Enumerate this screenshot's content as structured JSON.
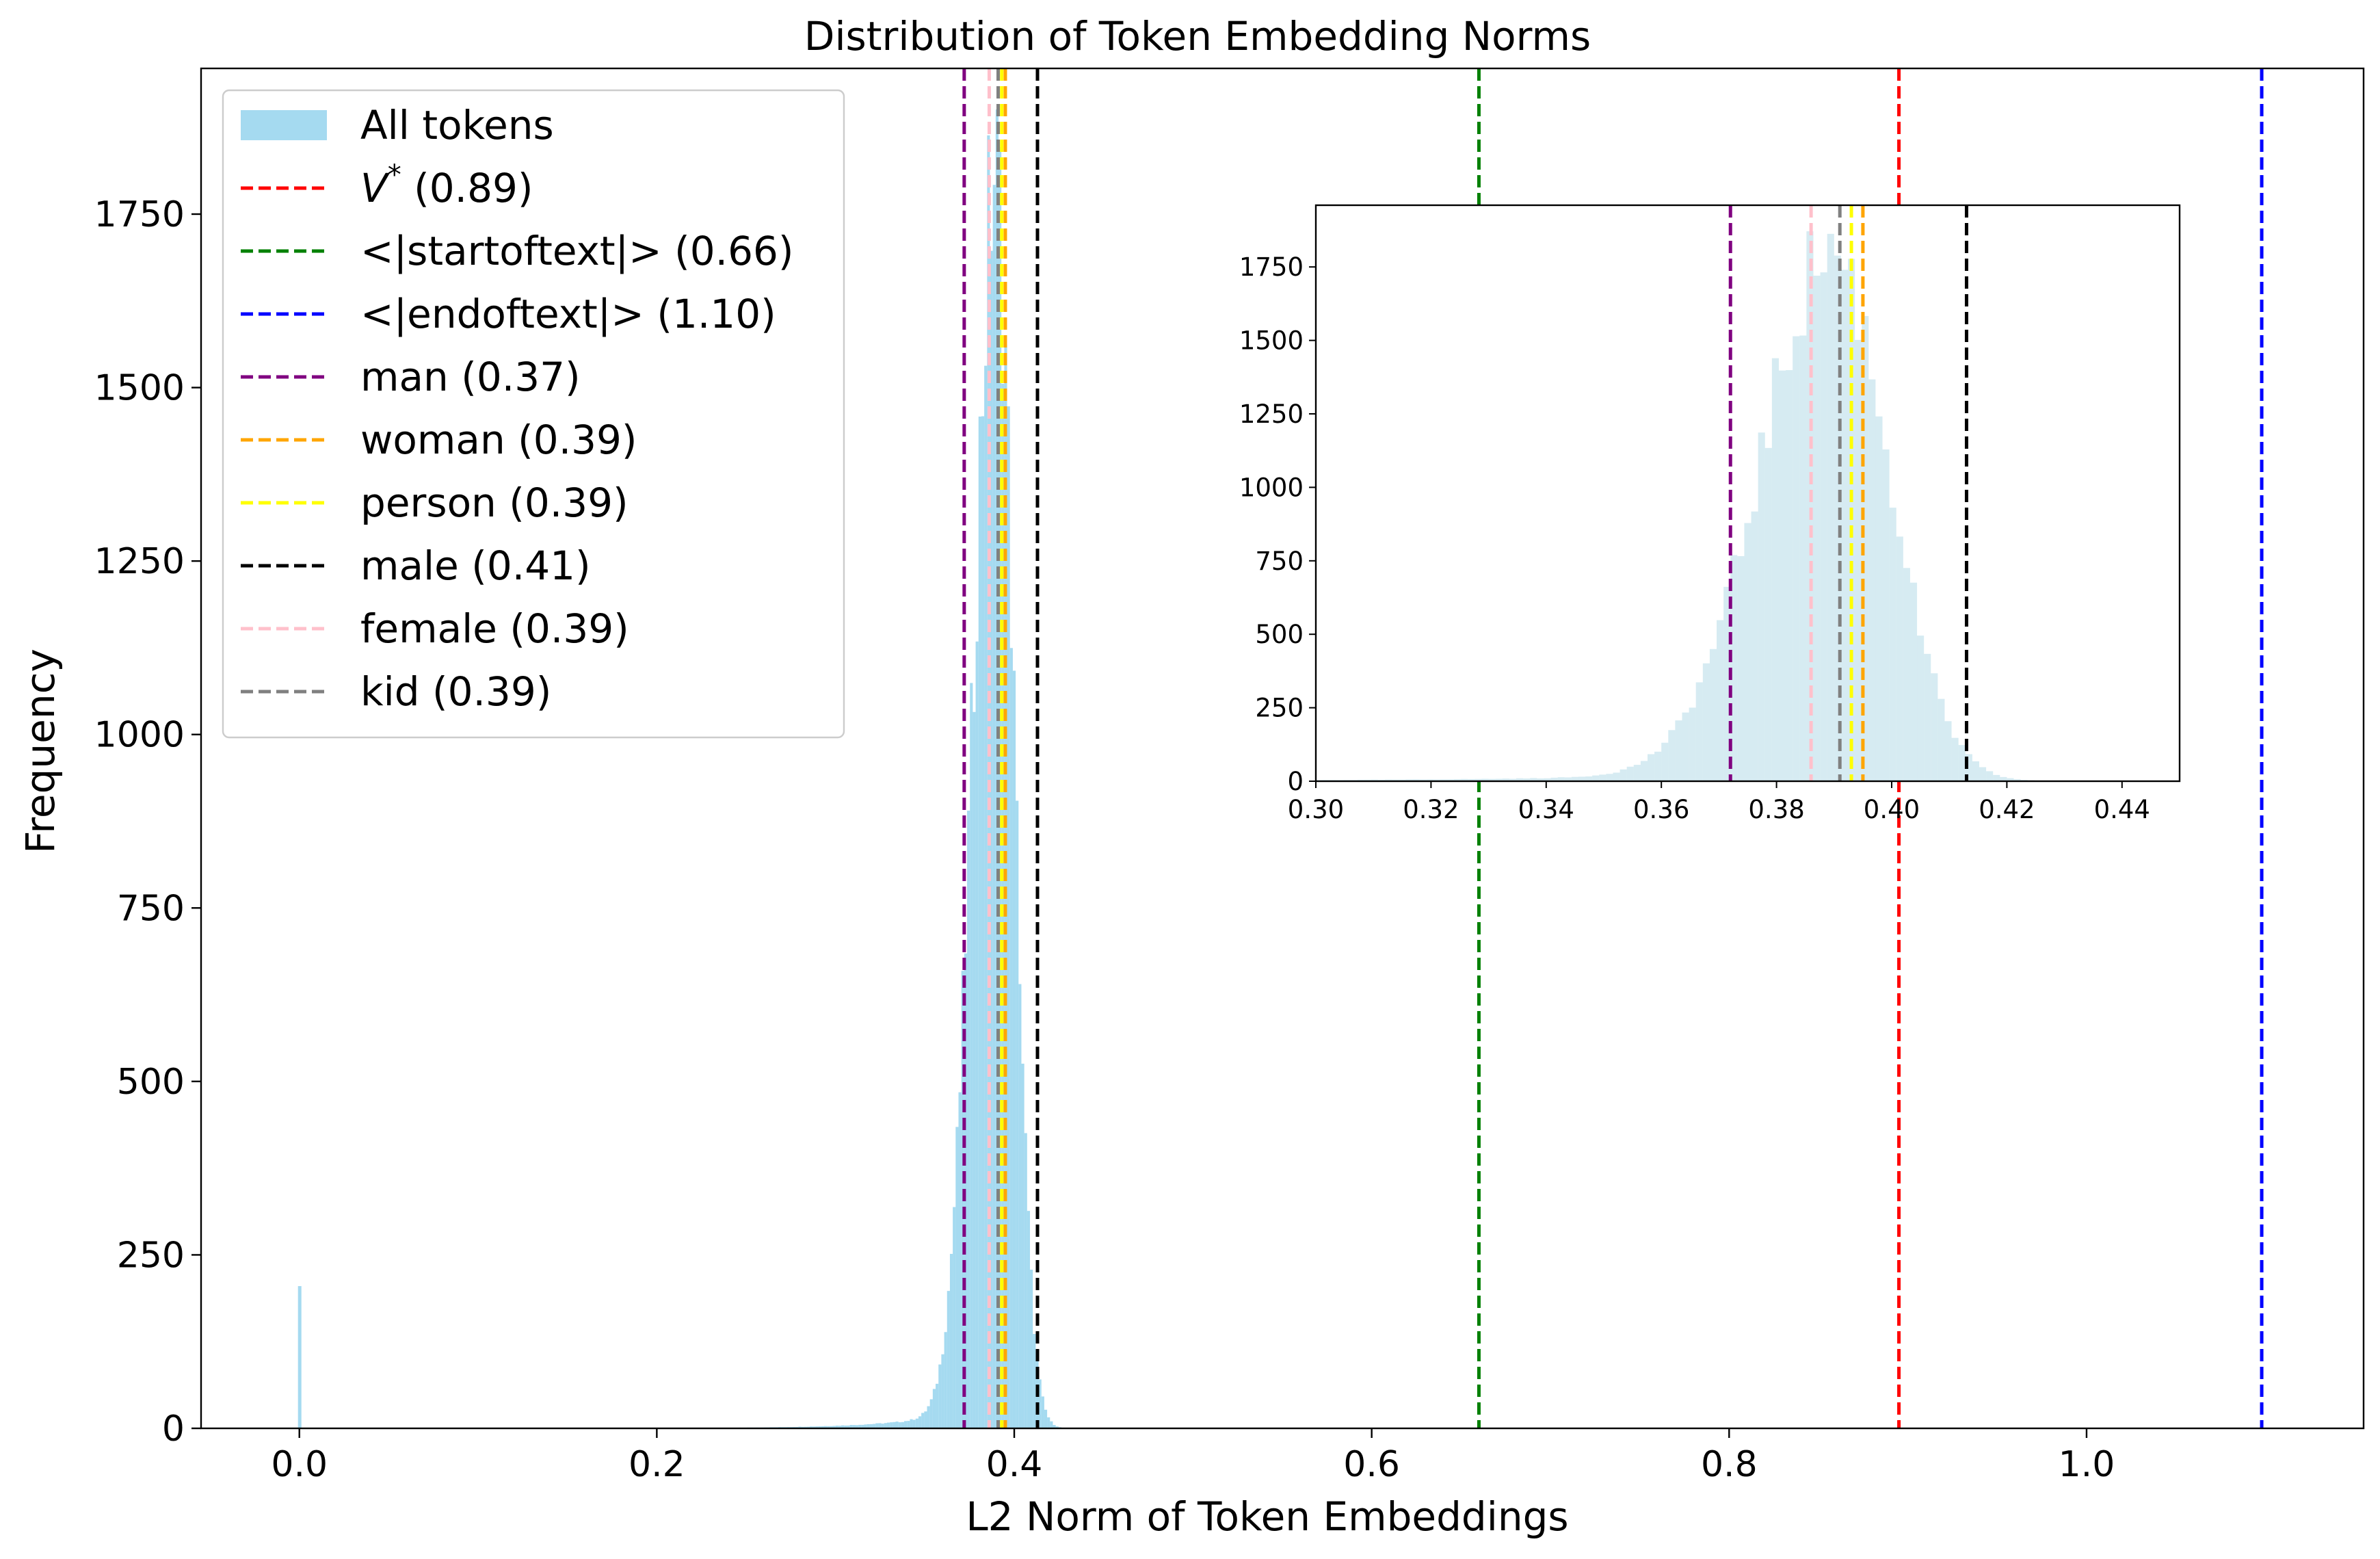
{
  "chart_data": {
    "type": "histogram",
    "title": "Distribution of Token Embedding Norms",
    "xlabel": "L2 Norm of Token Embeddings",
    "ylabel": "Frequency",
    "xlim": [
      -0.055,
      1.155
    ],
    "ylim": [
      0,
      1960
    ],
    "xticks": [
      0.0,
      0.2,
      0.4,
      0.6,
      0.8,
      1.0
    ],
    "xtick_labels": [
      "0.0",
      "0.2",
      "0.4",
      "0.6",
      "0.8",
      "1.0"
    ],
    "yticks": [
      0,
      250,
      500,
      750,
      1000,
      1250,
      1500,
      1750
    ],
    "ytick_labels": [
      "0",
      "250",
      "500",
      "750",
      "1000",
      "1250",
      "1500",
      "1750"
    ],
    "histogram": {
      "name": "All tokens",
      "color": "#87CEEB",
      "outlier_bin": {
        "x": 0.0,
        "count": 205
      },
      "peak_center": 0.39,
      "peak_count": 1790,
      "description_bins": "distribution of norms from 0 to about 0.44, peak near 0.39"
    },
    "reference_lines": [
      {
        "label": "V* (0.89)",
        "value": 0.895,
        "color": "#FF0000",
        "italic_symbol": true
      },
      {
        "label": "<|startoftext|> (0.66)",
        "value": 0.66,
        "color": "#008000"
      },
      {
        "label": "<|endoftext|> (1.10)",
        "value": 1.098,
        "color": "#0000FF"
      },
      {
        "label": "man (0.37)",
        "value": 0.372,
        "color": "#800080"
      },
      {
        "label": "woman (0.39)",
        "value": 0.395,
        "color": "#FFA500"
      },
      {
        "label": "person (0.39)",
        "value": 0.393,
        "color": "#FFFF00"
      },
      {
        "label": "male (0.41)",
        "value": 0.413,
        "color": "#000000"
      },
      {
        "label": "female (0.39)",
        "value": 0.386,
        "color": "#FFC0CB"
      },
      {
        "label": "kid (0.39)",
        "value": 0.391,
        "color": "#808080"
      }
    ],
    "legend": {
      "placement": "upper-left",
      "entries": [
        {
          "label": "All tokens",
          "kind": "patch",
          "color": "#87CEEB"
        },
        {
          "label_prefix": "V",
          "label_sup": "*",
          "label_suffix": " (0.89)",
          "kind": "line",
          "color": "#FF0000"
        },
        {
          "label": "<|startoftext|> (0.66)",
          "kind": "line",
          "color": "#008000"
        },
        {
          "label": "<|endoftext|> (1.10)",
          "kind": "line",
          "color": "#0000FF"
        },
        {
          "label": "man (0.37)",
          "kind": "line",
          "color": "#800080"
        },
        {
          "label": "woman (0.39)",
          "kind": "line",
          "color": "#FFA500"
        },
        {
          "label": "person (0.39)",
          "kind": "line",
          "color": "#FFFF00"
        },
        {
          "label": "male (0.41)",
          "kind": "line",
          "color": "#000000"
        },
        {
          "label": "female (0.39)",
          "kind": "line",
          "color": "#FFC0CB"
        },
        {
          "label": "kid (0.39)",
          "kind": "line",
          "color": "#808080"
        }
      ]
    },
    "inset": {
      "placement": "upper-right",
      "xlim": [
        0.3,
        0.45
      ],
      "ylim": [
        0,
        1960
      ],
      "xticks": [
        0.3,
        0.32,
        0.34,
        0.36,
        0.38,
        0.4,
        0.42,
        0.44
      ],
      "xtick_labels": [
        "0.30",
        "0.32",
        "0.34",
        "0.36",
        "0.38",
        "0.40",
        "0.42",
        "0.44"
      ],
      "yticks": [
        0,
        250,
        500,
        750,
        1000,
        1250,
        1500,
        1750
      ],
      "ytick_labels": [
        "0",
        "250",
        "500",
        "750",
        "1000",
        "1250",
        "1500",
        "1750"
      ],
      "color": "#ADD8E6",
      "lines": [
        {
          "value": 0.372,
          "color": "#800080"
        },
        {
          "value": 0.386,
          "color": "#FFC0CB"
        },
        {
          "value": 0.391,
          "color": "#808080"
        },
        {
          "value": 0.393,
          "color": "#FFFF00"
        },
        {
          "value": 0.395,
          "color": "#FFA500"
        },
        {
          "value": 0.413,
          "color": "#000000"
        }
      ]
    }
  }
}
